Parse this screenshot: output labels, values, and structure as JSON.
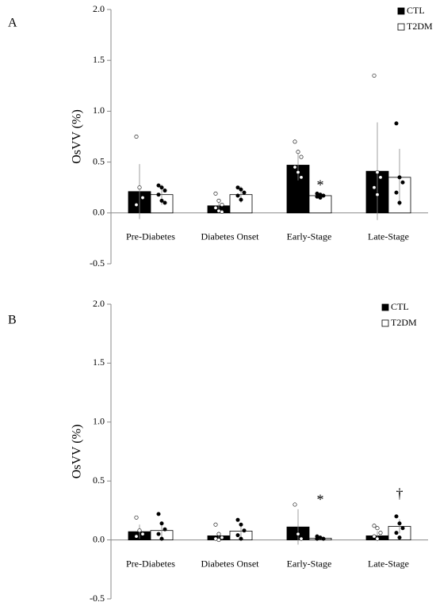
{
  "chart_data": [
    {
      "type": "bar",
      "panel": "A",
      "ylabel": "OsVV (%)",
      "categories": [
        "Pre-Diabetes",
        "Diabetes Onset",
        "Early-Stage",
        "Late-Stage"
      ],
      "series": [
        {
          "name": "CTL",
          "color": "#000000",
          "point_color": "#ffffff",
          "values": [
            0.21,
            0.07,
            0.47,
            0.41
          ],
          "errors": [
            0.27,
            0.06,
            0.15,
            0.48
          ],
          "points": [
            [
              0.75,
              0.25,
              0.15,
              0.08
            ],
            [
              0.19,
              0.12,
              0.08,
              0.05,
              0.02,
              0.01
            ],
            [
              0.7,
              0.6,
              0.55,
              0.45,
              0.4,
              0.35
            ],
            [
              1.35,
              0.4,
              0.35,
              0.25,
              0.18
            ]
          ]
        },
        {
          "name": "T2DM",
          "color": "#ffffff",
          "point_color": "#000000",
          "values": [
            0.18,
            0.18,
            0.17,
            0.35
          ],
          "errors": [
            0.1,
            0.08,
            0.03,
            0.28
          ],
          "points": [
            [
              0.27,
              0.25,
              0.22,
              0.18,
              0.12,
              0.1
            ],
            [
              0.25,
              0.23,
              0.2,
              0.17,
              0.13
            ],
            [
              0.19,
              0.18,
              0.17,
              0.16,
              0.15
            ],
            [
              0.88,
              0.35,
              0.3,
              0.2,
              0.1
            ]
          ]
        }
      ],
      "annotations": [
        {
          "text": "*",
          "category": "Early-Stage",
          "y": 0.26
        }
      ],
      "ylim": [
        -0.5,
        2
      ],
      "yticks": [
        {
          "value": 2,
          "label": "2.0"
        },
        {
          "value": 1.5,
          "label": "1.5"
        },
        {
          "value": 1,
          "label": "1.0"
        },
        {
          "value": 0.5,
          "label": "0.5"
        },
        {
          "value": 0,
          "label": "0.0"
        },
        {
          "value": -0.5,
          "label": "-0.5"
        }
      ],
      "legend": "upper right"
    },
    {
      "type": "bar",
      "panel": "B",
      "ylabel": "OsVV (%)",
      "categories": [
        "Pre-Diabetes",
        "Diabetes Onset",
        "Early-Stage",
        "Late-Stage"
      ],
      "series": [
        {
          "name": "CTL",
          "color": "#000000",
          "point_color": "#ffffff",
          "values": [
            0.07,
            0.035,
            0.11,
            0.035
          ],
          "errors": [
            0.06,
            0.03,
            0.15,
            0.04
          ],
          "points": [
            [
              0.19,
              0.08,
              0.05,
              0.03
            ],
            [
              0.13,
              0.05,
              0.02,
              0.01,
              0.0
            ],
            [
              0.3,
              0.05,
              0.01
            ],
            [
              0.12,
              0.1,
              0.06,
              0.03,
              0.01
            ]
          ]
        },
        {
          "name": "T2DM",
          "color": "#ffffff",
          "point_color": "#000000",
          "values": [
            0.08,
            0.075,
            0.015,
            0.115
          ],
          "errors": [
            0.07,
            0.06,
            0.01,
            0.06
          ],
          "points": [
            [
              0.22,
              0.14,
              0.09,
              0.05,
              0.01
            ],
            [
              0.17,
              0.13,
              0.08,
              0.04,
              0.01
            ],
            [
              0.03,
              0.02,
              0.01,
              0.01
            ],
            [
              0.2,
              0.14,
              0.1,
              0.06,
              0.02
            ]
          ]
        }
      ],
      "annotations": [
        {
          "text": "*",
          "category": "Early-Stage",
          "y": 0.33
        },
        {
          "text": "†",
          "category": "Late-Stage",
          "y": 0.38
        }
      ],
      "ylim": [
        -0.5,
        2
      ],
      "yticks": [
        {
          "value": 2,
          "label": "2.0"
        },
        {
          "value": 1.5,
          "label": "1.5"
        },
        {
          "value": 1,
          "label": "1.0"
        },
        {
          "value": 0.5,
          "label": "0.5"
        },
        {
          "value": 0,
          "label": "0.0"
        },
        {
          "value": -0.5,
          "label": "-0.5"
        }
      ],
      "legend": "upper right"
    }
  ]
}
